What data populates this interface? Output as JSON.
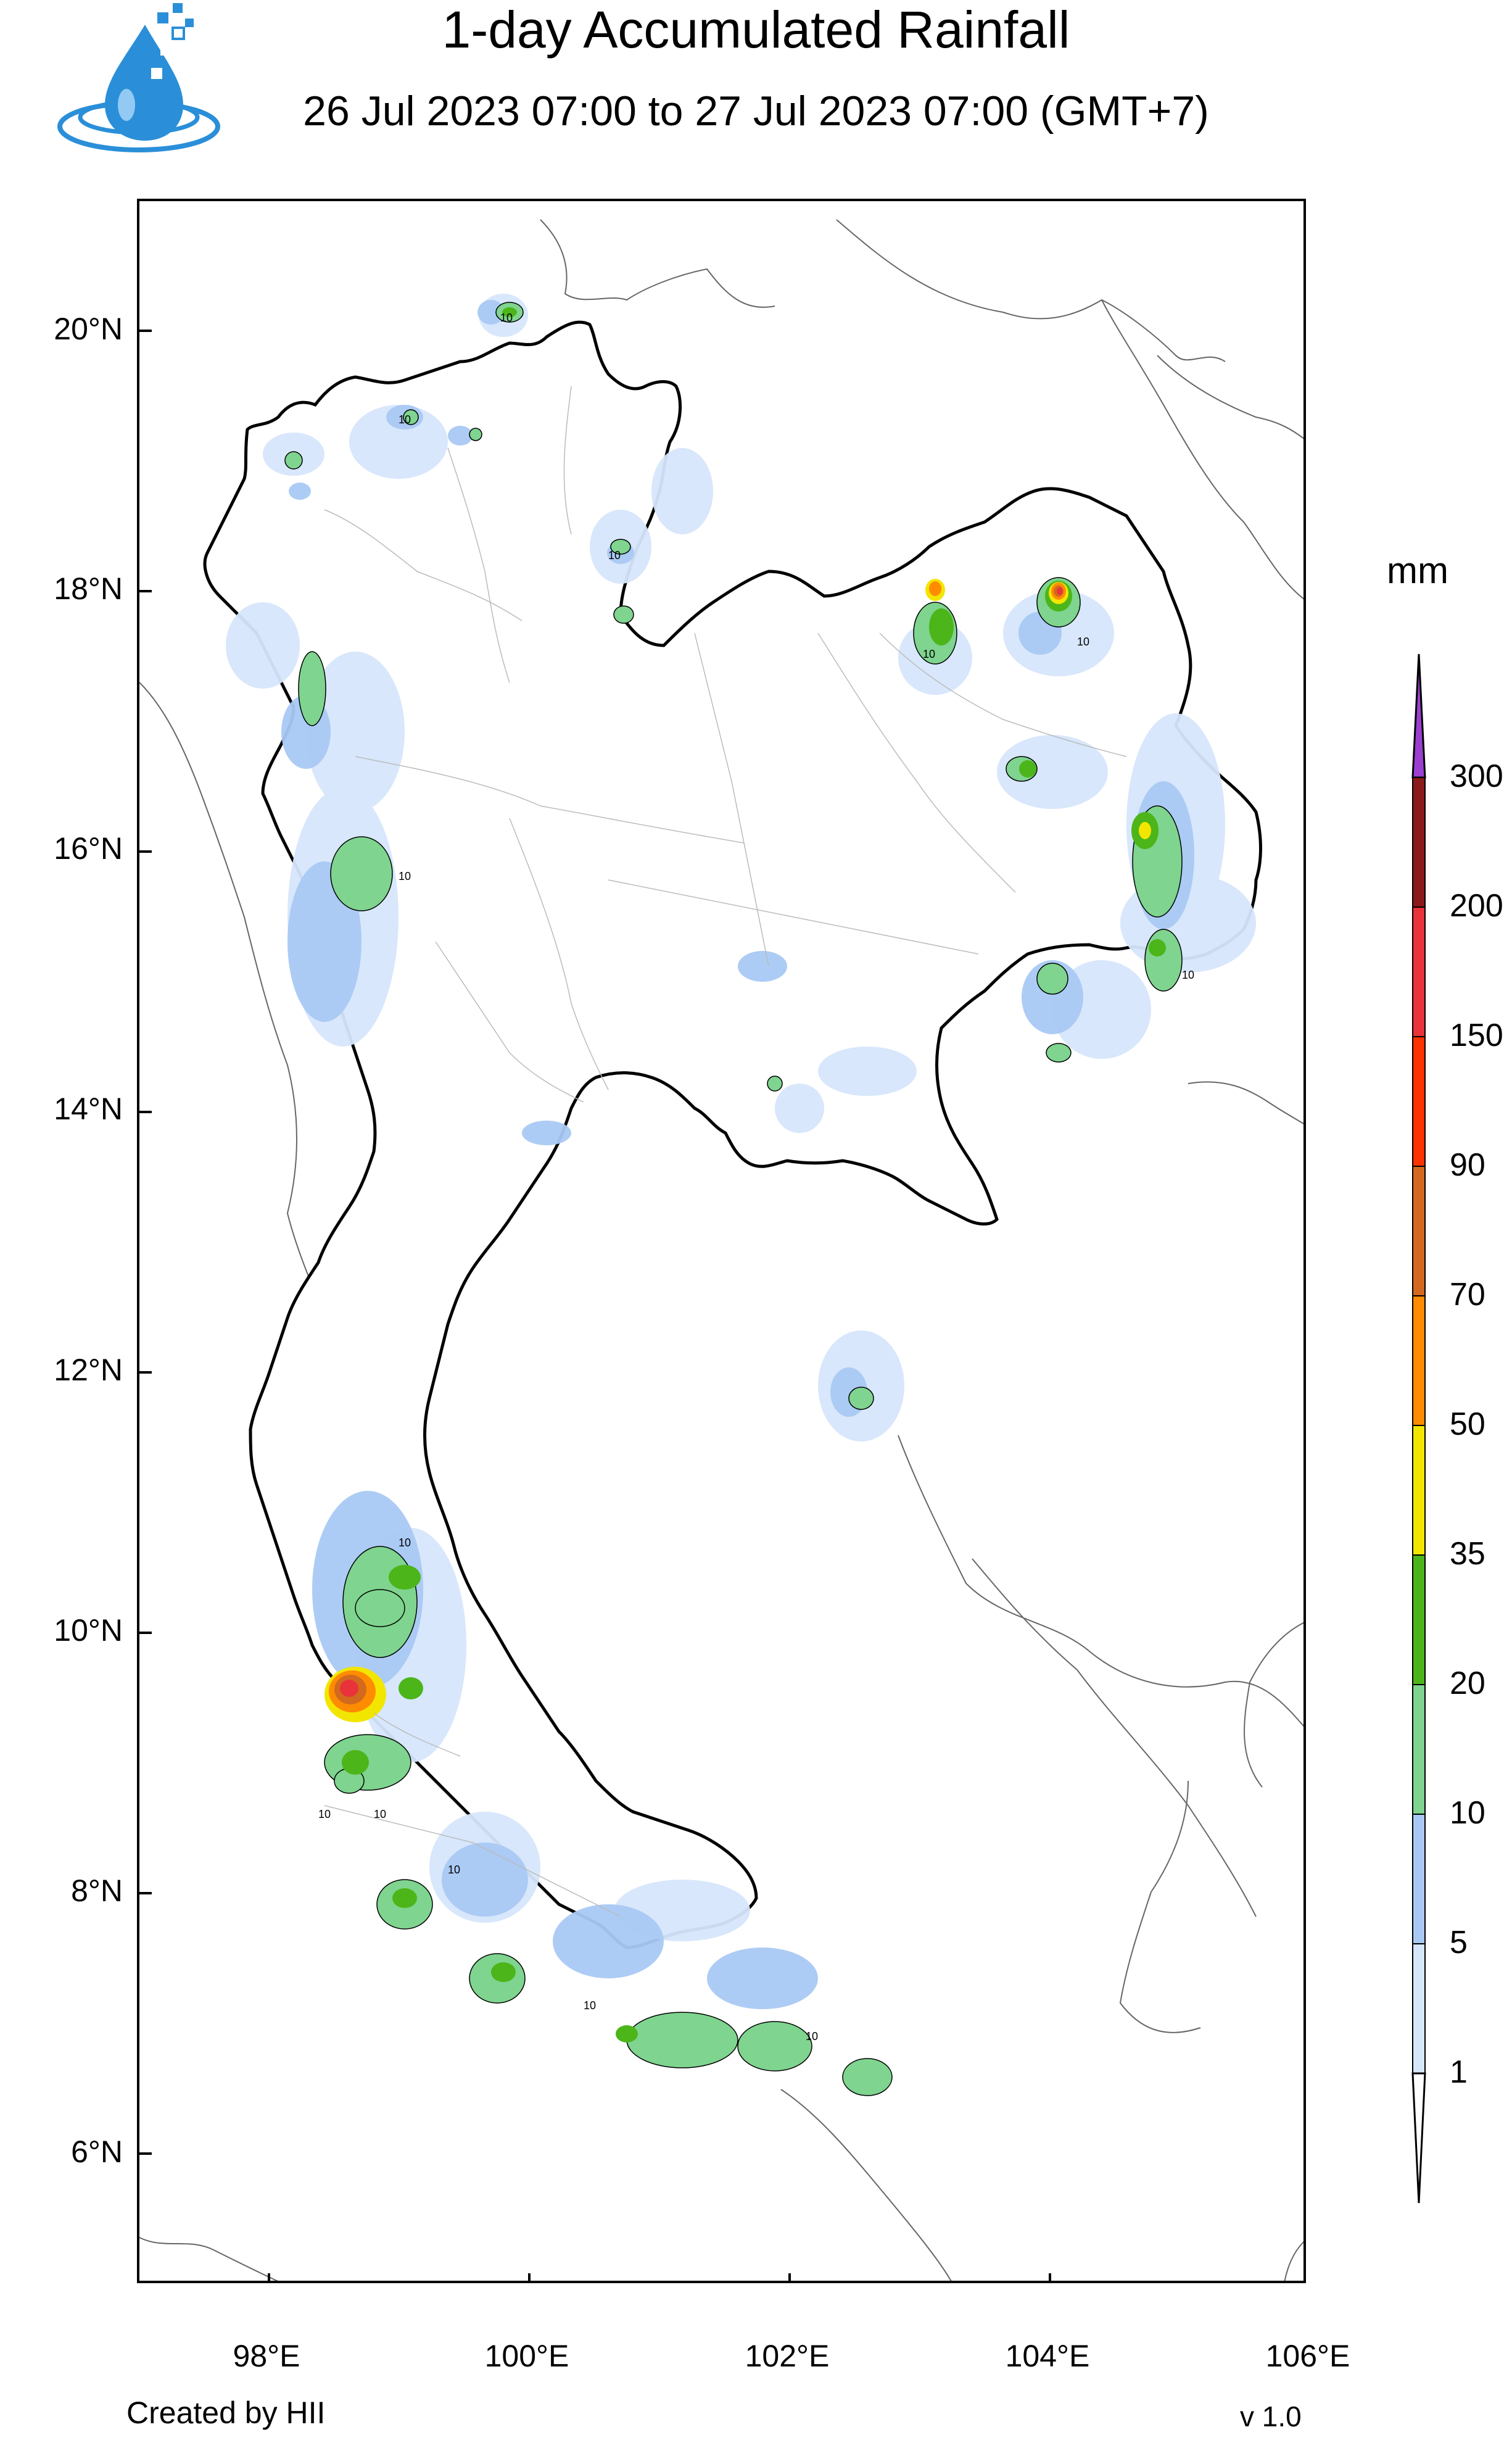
{
  "header": {
    "title": "1-day Accumulated Rainfall",
    "subtitle": "26 Jul 2023 07:00 to 27 Jul 2023 07:00 (GMT+7)"
  },
  "map": {
    "lat_ticks": [
      "20°N",
      "18°N",
      "16°N",
      "14°N",
      "12°N",
      "10°N",
      "8°N",
      "6°N"
    ],
    "lon_ticks": [
      "98°E",
      "100°E",
      "102°E",
      "104°E",
      "106°E"
    ],
    "lat_range": [
      5,
      21
    ],
    "lon_range": [
      97,
      106
    ],
    "contour_label": "10"
  },
  "colorbar": {
    "unit": "mm",
    "levels": [
      "1",
      "5",
      "10",
      "20",
      "35",
      "50",
      "70",
      "90",
      "150",
      "200",
      "300"
    ],
    "colors": [
      "#d6e6fb",
      "#a9c9f4",
      "#7fd48f",
      "#4cb519",
      "#f2e600",
      "#ff8c00",
      "#d2691e",
      "#ff3300",
      "#e8333a",
      "#8b1a1a",
      "#9b3fd1"
    ]
  },
  "footer": {
    "credit": "Created by HII",
    "version": "v 1.0"
  }
}
